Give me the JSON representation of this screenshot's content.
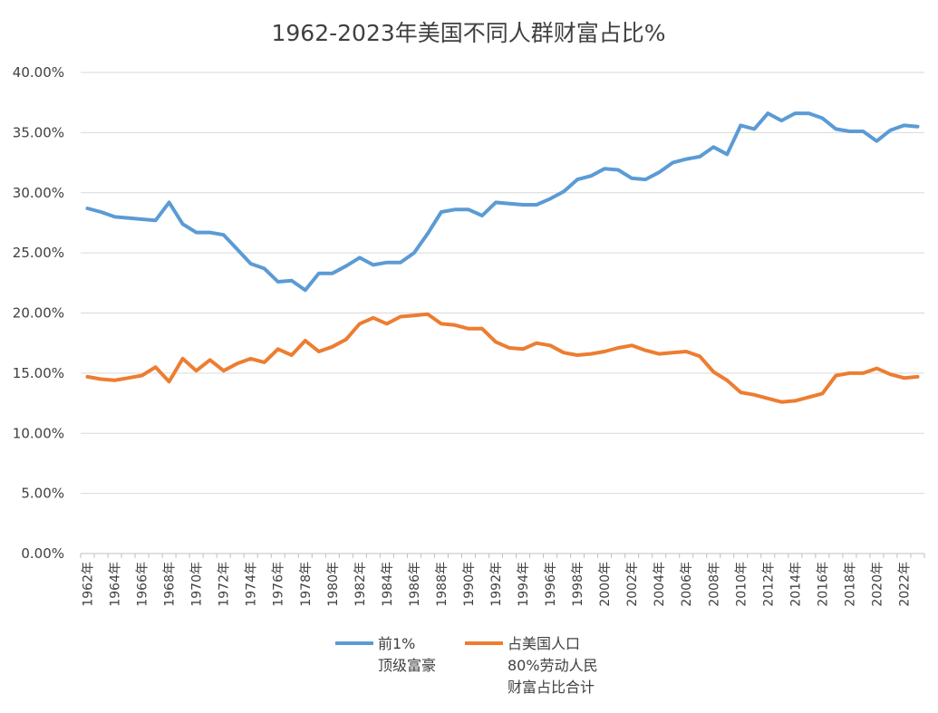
{
  "chart_data": {
    "type": "line",
    "title": "1962-2023年美国不同人群财富占比%",
    "xlabel": "",
    "ylabel": "",
    "ylim": [
      0,
      0.4
    ],
    "grid": true,
    "legend_position": "bottom",
    "y_ticks": [
      "0.00%",
      "5.00%",
      "10.00%",
      "15.00%",
      "20.00%",
      "25.00%",
      "30.00%",
      "35.00%",
      "40.00%"
    ],
    "x_tick_labels": [
      "1962年",
      "1964年",
      "1966年",
      "1968年",
      "1970年",
      "1972年",
      "1974年",
      "1976年",
      "1978年",
      "1980年",
      "1982年",
      "1984年",
      "1986年",
      "1988年",
      "1990年",
      "1992年",
      "1994年",
      "1996年",
      "1998年",
      "2000年",
      "2002年",
      "2004年",
      "2006年",
      "2008年",
      "2010年",
      "2012年",
      "2014年",
      "2016年",
      "2018年",
      "2020年",
      "2022年"
    ],
    "x": [
      1962,
      1963,
      1964,
      1965,
      1966,
      1967,
      1968,
      1969,
      1970,
      1971,
      1972,
      1973,
      1974,
      1975,
      1976,
      1977,
      1978,
      1979,
      1980,
      1981,
      1982,
      1983,
      1984,
      1985,
      1986,
      1987,
      1988,
      1989,
      1990,
      1991,
      1992,
      1993,
      1994,
      1995,
      1996,
      1997,
      1998,
      1999,
      2000,
      2001,
      2002,
      2003,
      2004,
      2005,
      2006,
      2007,
      2008,
      2009,
      2010,
      2011,
      2012,
      2013,
      2014,
      2015,
      2016,
      2017,
      2018,
      2019,
      2020,
      2021,
      2022,
      2023
    ],
    "series": [
      {
        "name": "前1% 顶级富豪",
        "legend_lines": [
          "前1%",
          "顶级富豪"
        ],
        "color": "#5b9bd5",
        "values": [
          0.287,
          0.284,
          0.28,
          0.279,
          0.278,
          0.277,
          0.292,
          0.274,
          0.267,
          0.267,
          0.265,
          0.253,
          0.241,
          0.237,
          0.226,
          0.227,
          0.219,
          0.233,
          0.233,
          0.239,
          0.246,
          0.24,
          0.242,
          0.242,
          0.25,
          0.266,
          0.284,
          0.286,
          0.286,
          0.281,
          0.292,
          0.291,
          0.29,
          0.29,
          0.295,
          0.301,
          0.311,
          0.314,
          0.32,
          0.319,
          0.312,
          0.311,
          0.317,
          0.325,
          0.328,
          0.33,
          0.338,
          0.332,
          0.356,
          0.353,
          0.366,
          0.36,
          0.366,
          0.366,
          0.362,
          0.353,
          0.351,
          0.351,
          0.343,
          0.352,
          0.356,
          0.355
        ]
      },
      {
        "name": "占美国人口 80%劳动人民 财富占比合计",
        "legend_lines": [
          "占美国人口",
          "80%劳动人民",
          "财富占比合计"
        ],
        "color": "#ed7d31",
        "values": [
          0.147,
          0.145,
          0.144,
          0.146,
          0.148,
          0.155,
          0.143,
          0.162,
          0.152,
          0.161,
          0.152,
          0.158,
          0.162,
          0.159,
          0.17,
          0.165,
          0.177,
          0.168,
          0.172,
          0.178,
          0.191,
          0.196,
          0.191,
          0.197,
          0.198,
          0.199,
          0.191,
          0.19,
          0.187,
          0.187,
          0.176,
          0.171,
          0.17,
          0.175,
          0.173,
          0.167,
          0.165,
          0.166,
          0.168,
          0.171,
          0.173,
          0.169,
          0.166,
          0.167,
          0.168,
          0.164,
          0.151,
          0.144,
          0.134,
          0.132,
          0.129,
          0.126,
          0.127,
          0.13,
          0.133,
          0.148,
          0.15,
          0.15,
          0.154,
          0.149,
          0.146,
          0.147
        ]
      }
    ]
  }
}
